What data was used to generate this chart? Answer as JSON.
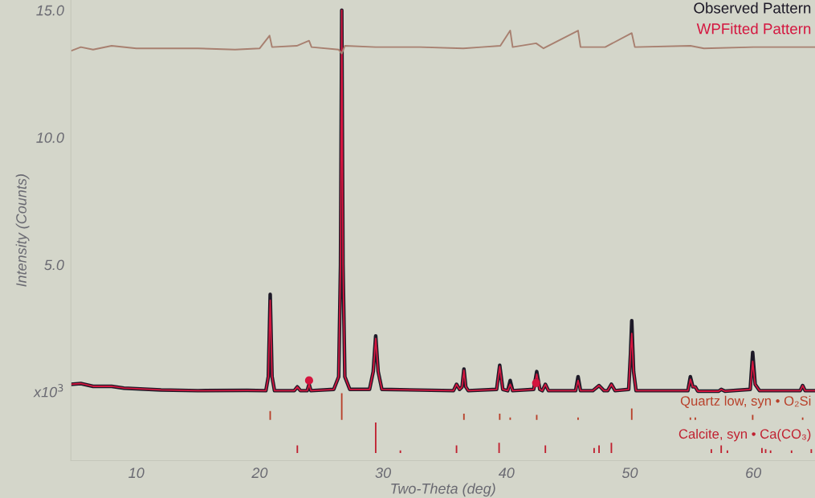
{
  "chart_data": {
    "type": "line",
    "xlabel": "Two-Theta (deg)",
    "ylabel": "Intensity (Counts)",
    "xlim": [
      4.7,
      65
    ],
    "ylim": [
      -2.7,
      15.4
    ],
    "xticks": [
      10,
      20,
      30,
      40,
      50,
      60
    ],
    "yticks": [
      {
        "value": 0,
        "label": "x10$^{3}$"
      },
      {
        "value": 5,
        "label": "5.0"
      },
      {
        "value": 10,
        "label": "10.0"
      },
      {
        "value": 15,
        "label": "15.0"
      }
    ],
    "legend": "top right",
    "grid": false,
    "x": [
      4.7,
      5.5,
      6.5,
      8.0,
      9.0,
      12.0,
      15.0,
      19.0,
      20.5,
      20.7,
      20.85,
      21.0,
      21.2,
      22.8,
      23.05,
      23.3,
      23.85,
      24.0,
      24.15,
      26.0,
      26.4,
      26.55,
      26.65,
      26.75,
      26.9,
      27.3,
      28.9,
      29.2,
      29.4,
      29.6,
      29.9,
      35.7,
      35.95,
      36.2,
      36.4,
      36.55,
      36.7,
      36.9,
      39.2,
      39.45,
      39.7,
      40.1,
      40.3,
      40.5,
      42.2,
      42.45,
      42.7,
      42.9,
      43.15,
      43.4,
      45.6,
      45.8,
      46.0,
      47.0,
      47.5,
      47.9,
      48.2,
      48.5,
      48.8,
      49.9,
      50.05,
      50.15,
      50.3,
      50.5,
      54.7,
      54.9,
      55.1,
      55.3,
      55.5,
      57.2,
      57.4,
      57.7,
      59.75,
      59.95,
      60.15,
      60.5,
      63.8,
      64.0,
      64.2,
      65.0
    ],
    "series": [
      {
        "name": "Observed Pattern",
        "color": "#1e1a28",
        "values": [
          0.3,
          0.33,
          0.22,
          0.22,
          0.15,
          0.08,
          0.05,
          0.06,
          0.05,
          0.6,
          3.83,
          0.6,
          0.05,
          0.05,
          0.2,
          0.05,
          0.05,
          0.3,
          0.05,
          0.1,
          0.6,
          5.0,
          15.0,
          5.0,
          0.6,
          0.1,
          0.1,
          0.8,
          2.2,
          0.8,
          0.1,
          0.05,
          0.3,
          0.1,
          0.2,
          0.9,
          0.2,
          0.05,
          0.1,
          1.05,
          0.1,
          0.05,
          0.45,
          0.05,
          0.1,
          0.8,
          0.1,
          0.05,
          0.3,
          0.05,
          0.05,
          0.6,
          0.05,
          0.05,
          0.25,
          0.05,
          0.05,
          0.3,
          0.05,
          0.1,
          1.5,
          2.8,
          0.8,
          0.05,
          0.05,
          0.6,
          0.2,
          0.2,
          0.03,
          0.03,
          0.1,
          0.03,
          0.1,
          1.55,
          0.3,
          0.05,
          0.05,
          0.25,
          0.05,
          0.05
        ]
      },
      {
        "name": "WPFitted Pattern",
        "color": "#d4163f",
        "values": [
          0.3,
          0.33,
          0.22,
          0.22,
          0.15,
          0.08,
          0.05,
          0.06,
          0.05,
          0.6,
          3.6,
          0.6,
          0.05,
          0.05,
          0.2,
          0.05,
          0.05,
          0.3,
          0.05,
          0.1,
          0.6,
          5.0,
          15.0,
          5.0,
          0.6,
          0.1,
          0.1,
          0.8,
          2.1,
          0.8,
          0.1,
          0.05,
          0.3,
          0.1,
          0.2,
          0.85,
          0.2,
          0.05,
          0.1,
          1.0,
          0.1,
          0.05,
          0.3,
          0.05,
          0.1,
          0.7,
          0.1,
          0.05,
          0.3,
          0.05,
          0.05,
          0.45,
          0.05,
          0.05,
          0.25,
          0.05,
          0.05,
          0.3,
          0.05,
          0.1,
          1.5,
          2.3,
          0.8,
          0.05,
          0.05,
          0.5,
          0.2,
          0.2,
          0.03,
          0.03,
          0.1,
          0.03,
          0.1,
          1.2,
          0.3,
          0.05,
          0.05,
          0.25,
          0.05,
          0.05
        ]
      },
      {
        "type": "line",
        "color": "#a88070",
        "x": [
          4.7,
          5.5,
          6.5,
          8.0,
          10,
          15,
          18,
          20,
          20.8,
          21.0,
          23,
          24.0,
          24.2,
          26.4,
          26.65,
          26.9,
          29.4,
          33,
          36.5,
          38,
          39.5,
          40.3,
          40.5,
          42.4,
          43,
          45.8,
          46.0,
          48,
          50.15,
          50.4,
          54.9,
          56,
          60,
          65
        ],
        "values": [
          13.4,
          13.55,
          13.45,
          13.6,
          13.5,
          13.5,
          13.45,
          13.5,
          14.0,
          13.55,
          13.6,
          13.8,
          13.55,
          13.45,
          13.3,
          13.6,
          13.55,
          13.55,
          13.5,
          13.55,
          13.6,
          14.2,
          13.55,
          13.7,
          13.5,
          14.2,
          13.55,
          13.55,
          14.1,
          13.55,
          13.6,
          13.5,
          13.55,
          13.55
        ]
      },
      {
        "type": "scatter",
        "color": "#d4163f",
        "marker": "circle",
        "x": [
          24.0,
          42.4
        ],
        "values": [
          0.45,
          0.35
        ]
      },
      {
        "type": "bar",
        "name": "Quartz low, syn • O₂Si",
        "color": "#b8402a",
        "x": [
          20.85,
          26.65,
          36.55,
          39.45,
          40.3,
          42.45,
          45.8,
          50.15,
          54.9,
          55.3,
          59.95,
          64.0
        ],
        "base": [
          -1.1,
          -1.1,
          -1.1,
          -1.1,
          -1.1,
          -1.1,
          -1.1,
          -1.1,
          -1.1,
          -1.1,
          -1.1,
          -1.1
        ],
        "values": [
          0.35,
          1.05,
          0.25,
          0.25,
          0.1,
          0.2,
          0.1,
          0.45,
          0.1,
          0.1,
          0.2,
          0.1
        ]
      },
      {
        "type": "bar",
        "name": "Calcite, syn • Ca(CO₃)",
        "color": "#c02030",
        "x": [
          23.05,
          29.4,
          31.4,
          35.95,
          39.4,
          43.15,
          47.1,
          47.5,
          48.5,
          56.6,
          57.4,
          57.9,
          60.7,
          61.0,
          61.4,
          63.1,
          64.7
        ],
        "base": [
          -2.4,
          -2.4,
          -2.4,
          -2.4,
          -2.4,
          -2.4,
          -2.4,
          -2.4,
          -2.4,
          -2.4,
          -2.4,
          -2.4,
          -2.4,
          -2.4,
          -2.4,
          -2.4,
          -2.4
        ],
        "values": [
          0.3,
          1.2,
          0.1,
          0.3,
          0.4,
          0.3,
          0.2,
          0.3,
          0.4,
          0.15,
          0.3,
          0.1,
          0.2,
          0.15,
          0.1,
          0.1,
          0.15
        ]
      }
    ]
  }
}
